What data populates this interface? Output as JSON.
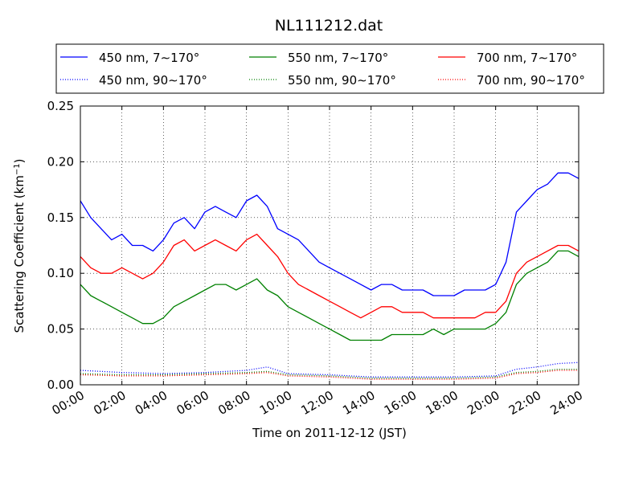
{
  "chart_data": {
    "type": "line",
    "title": "NL111212.dat",
    "xlabel": "Time on 2011-12-12 (JST)",
    "ylabel": "Scattering Coefficient (km",
    "ylabel_unit_exp": "−1",
    "ylabel_close": ")",
    "xlim": [
      0,
      24
    ],
    "ylim": [
      0,
      0.25
    ],
    "grid": true,
    "legend_position": "top",
    "x_ticks": [
      0,
      2,
      4,
      6,
      8,
      10,
      12,
      14,
      16,
      18,
      20,
      22,
      24
    ],
    "x_tick_labels": [
      "00:00",
      "02:00",
      "04:00",
      "06:00",
      "08:00",
      "10:00",
      "12:00",
      "14:00",
      "16:00",
      "18:00",
      "20:00",
      "22:00",
      "24:00"
    ],
    "y_ticks": [
      0,
      0.05,
      0.1,
      0.15,
      0.2,
      0.25
    ],
    "y_tick_labels": [
      "0.00",
      "0.05",
      "0.10",
      "0.15",
      "0.20",
      "0.25"
    ],
    "series": [
      {
        "name": "450 nm, 7∼170°",
        "color": "#0000ff",
        "style": "solid",
        "x": [
          0,
          0.5,
          1,
          1.5,
          2,
          2.5,
          3,
          3.5,
          4,
          4.5,
          5,
          5.5,
          6,
          6.5,
          7,
          7.5,
          8,
          8.5,
          9,
          9.5,
          10,
          10.5,
          11,
          11.5,
          12,
          12.5,
          13,
          13.5,
          14,
          14.5,
          15,
          15.5,
          16,
          16.5,
          17,
          17.5,
          18,
          18.5,
          19,
          19.5,
          20,
          20.5,
          21,
          21.5,
          22,
          22.5,
          23,
          23.5,
          24
        ],
        "y": [
          0.165,
          0.15,
          0.14,
          0.13,
          0.135,
          0.125,
          0.125,
          0.12,
          0.13,
          0.145,
          0.15,
          0.14,
          0.155,
          0.16,
          0.155,
          0.15,
          0.165,
          0.17,
          0.16,
          0.14,
          0.135,
          0.13,
          0.12,
          0.11,
          0.105,
          0.1,
          0.095,
          0.09,
          0.085,
          0.09,
          0.09,
          0.085,
          0.085,
          0.085,
          0.08,
          0.08,
          0.08,
          0.085,
          0.085,
          0.085,
          0.09,
          0.11,
          0.155,
          0.165,
          0.175,
          0.18,
          0.19,
          0.19,
          0.185
        ]
      },
      {
        "name": "450 nm, 90∼170°",
        "color": "#0000ff",
        "style": "dotted",
        "x": [
          0,
          2,
          4,
          6,
          8,
          9,
          10,
          12,
          14,
          16,
          18,
          20,
          21,
          22,
          23,
          24
        ],
        "y": [
          0.013,
          0.011,
          0.01,
          0.011,
          0.013,
          0.016,
          0.01,
          0.009,
          0.007,
          0.007,
          0.007,
          0.008,
          0.014,
          0.016,
          0.019,
          0.02
        ]
      },
      {
        "name": "550 nm, 7∼170°",
        "color": "#008000",
        "style": "solid",
        "x": [
          0,
          0.5,
          1,
          1.5,
          2,
          2.5,
          3,
          3.5,
          4,
          4.5,
          5,
          5.5,
          6,
          6.5,
          7,
          7.5,
          8,
          8.5,
          9,
          9.5,
          10,
          10.5,
          11,
          11.5,
          12,
          12.5,
          13,
          13.5,
          14,
          14.5,
          15,
          15.5,
          16,
          16.5,
          17,
          17.5,
          18,
          18.5,
          19,
          19.5,
          20,
          20.5,
          21,
          21.5,
          22,
          22.5,
          23,
          23.5,
          24
        ],
        "y": [
          0.09,
          0.08,
          0.075,
          0.07,
          0.065,
          0.06,
          0.055,
          0.055,
          0.06,
          0.07,
          0.075,
          0.08,
          0.085,
          0.09,
          0.09,
          0.085,
          0.09,
          0.095,
          0.085,
          0.08,
          0.07,
          0.065,
          0.06,
          0.055,
          0.05,
          0.045,
          0.04,
          0.04,
          0.04,
          0.04,
          0.045,
          0.045,
          0.045,
          0.045,
          0.05,
          0.045,
          0.05,
          0.05,
          0.05,
          0.05,
          0.055,
          0.065,
          0.09,
          0.1,
          0.105,
          0.11,
          0.12,
          0.12,
          0.115
        ]
      },
      {
        "name": "550 nm, 90∼170°",
        "color": "#008000",
        "style": "dotted",
        "x": [
          0,
          2,
          4,
          6,
          8,
          9,
          10,
          12,
          14,
          16,
          18,
          20,
          21,
          22,
          23,
          24
        ],
        "y": [
          0.01,
          0.009,
          0.009,
          0.01,
          0.011,
          0.012,
          0.009,
          0.008,
          0.006,
          0.006,
          0.006,
          0.007,
          0.011,
          0.012,
          0.014,
          0.014
        ]
      },
      {
        "name": "700 nm, 7∼170°",
        "color": "#ff0000",
        "style": "solid",
        "x": [
          0,
          0.5,
          1,
          1.5,
          2,
          2.5,
          3,
          3.5,
          4,
          4.5,
          5,
          5.5,
          6,
          6.5,
          7,
          7.5,
          8,
          8.5,
          9,
          9.5,
          10,
          10.5,
          11,
          11.5,
          12,
          12.5,
          13,
          13.5,
          14,
          14.5,
          15,
          15.5,
          16,
          16.5,
          17,
          17.5,
          18,
          18.5,
          19,
          19.5,
          20,
          20.5,
          21,
          21.5,
          22,
          22.5,
          23,
          23.5,
          24
        ],
        "y": [
          0.115,
          0.105,
          0.1,
          0.1,
          0.105,
          0.1,
          0.095,
          0.1,
          0.11,
          0.125,
          0.13,
          0.12,
          0.125,
          0.13,
          0.125,
          0.12,
          0.13,
          0.135,
          0.125,
          0.115,
          0.1,
          0.09,
          0.085,
          0.08,
          0.075,
          0.07,
          0.065,
          0.06,
          0.065,
          0.07,
          0.07,
          0.065,
          0.065,
          0.065,
          0.06,
          0.06,
          0.06,
          0.06,
          0.06,
          0.065,
          0.065,
          0.075,
          0.1,
          0.11,
          0.115,
          0.12,
          0.125,
          0.125,
          0.12
        ]
      },
      {
        "name": "700 nm, 90∼170°",
        "color": "#ff0000",
        "style": "dotted",
        "x": [
          0,
          2,
          4,
          6,
          8,
          9,
          10,
          12,
          14,
          16,
          18,
          20,
          21,
          22,
          23,
          24
        ],
        "y": [
          0.009,
          0.008,
          0.008,
          0.009,
          0.01,
          0.011,
          0.008,
          0.007,
          0.005,
          0.005,
          0.005,
          0.006,
          0.01,
          0.011,
          0.013,
          0.013
        ]
      }
    ]
  }
}
